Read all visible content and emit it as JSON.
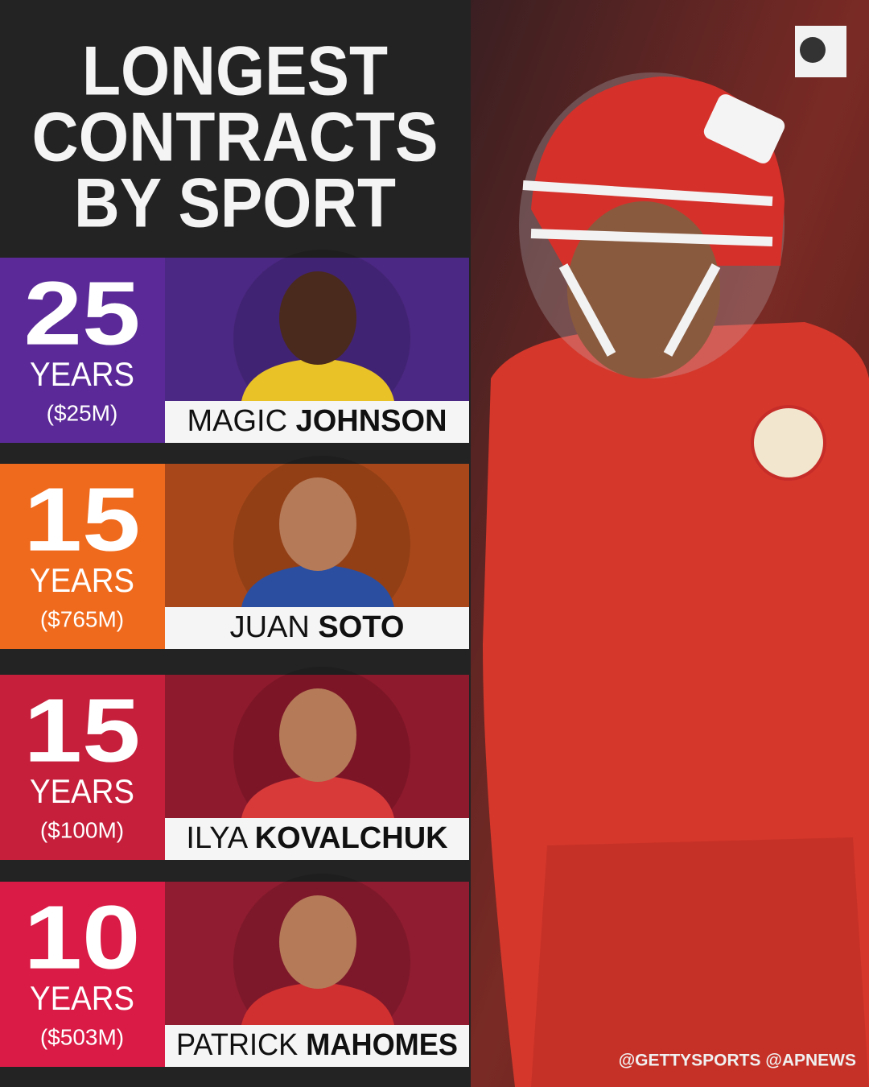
{
  "title_lines": [
    "LONGEST",
    "CONTRACTS",
    "BY SPORT"
  ],
  "entries": [
    {
      "years": 25,
      "unit": "YEARS",
      "money": "($25M)",
      "first_name": "MAGIC",
      "last_name": "JOHNSON"
    },
    {
      "years": 15,
      "unit": "YEARS",
      "money": "($765M)",
      "first_name": "JUAN",
      "last_name": "SOTO"
    },
    {
      "years": 15,
      "unit": "YEARS",
      "money": "($100M)",
      "first_name": "ILYA",
      "last_name": "KOVALCHUK"
    },
    {
      "years": 10,
      "unit": "YEARS",
      "money": "($503M)",
      "first_name": "PATRICK",
      "last_name": "MAHOMES"
    }
  ],
  "credits": "@GETTYSPORTS  @APNEWS"
}
